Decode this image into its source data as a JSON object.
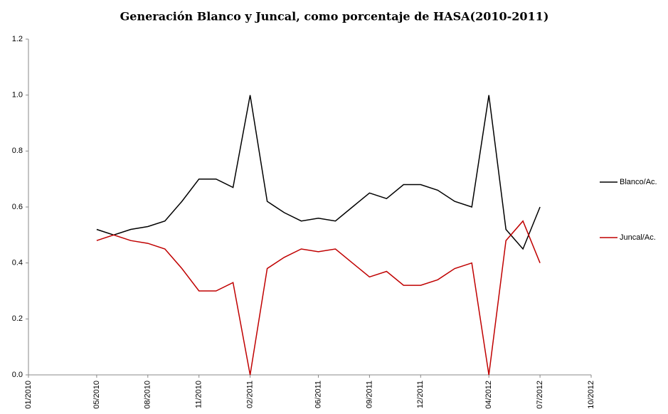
{
  "chart_data": {
    "type": "line",
    "title": "Generación Blanco y Juncal, como porcentaje de HASA(2010-2011)",
    "x": [
      "05/2010",
      "06/2010",
      "07/2010",
      "08/2010",
      "09/2010",
      "10/2010",
      "11/2010",
      "12/2010",
      "01/2011",
      "02/2011",
      "03/2011",
      "04/2011",
      "05/2011",
      "06/2011",
      "07/2011",
      "08/2011",
      "09/2011",
      "10/2011",
      "11/2011",
      "12/2011",
      "01/2012",
      "02/2012",
      "03/2012",
      "04/2012",
      "05/2012",
      "06/2012",
      "07/2012"
    ],
    "series": [
      {
        "name": "Blanco/Ac.",
        "color": "#000000",
        "values": [
          0.52,
          0.5,
          0.52,
          0.53,
          0.55,
          0.62,
          0.7,
          0.7,
          0.67,
          1.0,
          0.62,
          0.58,
          0.55,
          0.56,
          0.55,
          0.6,
          0.65,
          0.63,
          0.68,
          0.68,
          0.66,
          0.62,
          0.6,
          1.0,
          0.52,
          0.45,
          0.6
        ]
      },
      {
        "name": "Juncal/Ac.",
        "color": "#c00000",
        "values": [
          0.48,
          0.5,
          0.48,
          0.47,
          0.45,
          0.38,
          0.3,
          0.3,
          0.33,
          0.0,
          0.38,
          0.42,
          0.45,
          0.44,
          0.45,
          0.4,
          0.35,
          0.37,
          0.32,
          0.32,
          0.34,
          0.38,
          0.4,
          0.0,
          0.48,
          0.55,
          0.4
        ]
      }
    ],
    "xlim": [
      "01/2010",
      "10/2012"
    ],
    "xticks": [
      "01/2010",
      "05/2010",
      "08/2010",
      "11/2010",
      "02/2011",
      "06/2011",
      "09/2011",
      "12/2011",
      "04/2012",
      "07/2012",
      "10/2012"
    ],
    "ylim": [
      0,
      1.2
    ],
    "yticks": [
      {
        "value": 0,
        "label": "0.0"
      },
      {
        "value": 0.2,
        "label": "0.2"
      },
      {
        "value": 0.4,
        "label": "0.4"
      },
      {
        "value": 0.6,
        "label": "0.6"
      },
      {
        "value": 0.8,
        "label": "0.8"
      },
      {
        "value": 1,
        "label": "1.0"
      },
      {
        "value": 1.2,
        "label": "1.2"
      }
    ],
    "grid": false,
    "legend": "right"
  }
}
